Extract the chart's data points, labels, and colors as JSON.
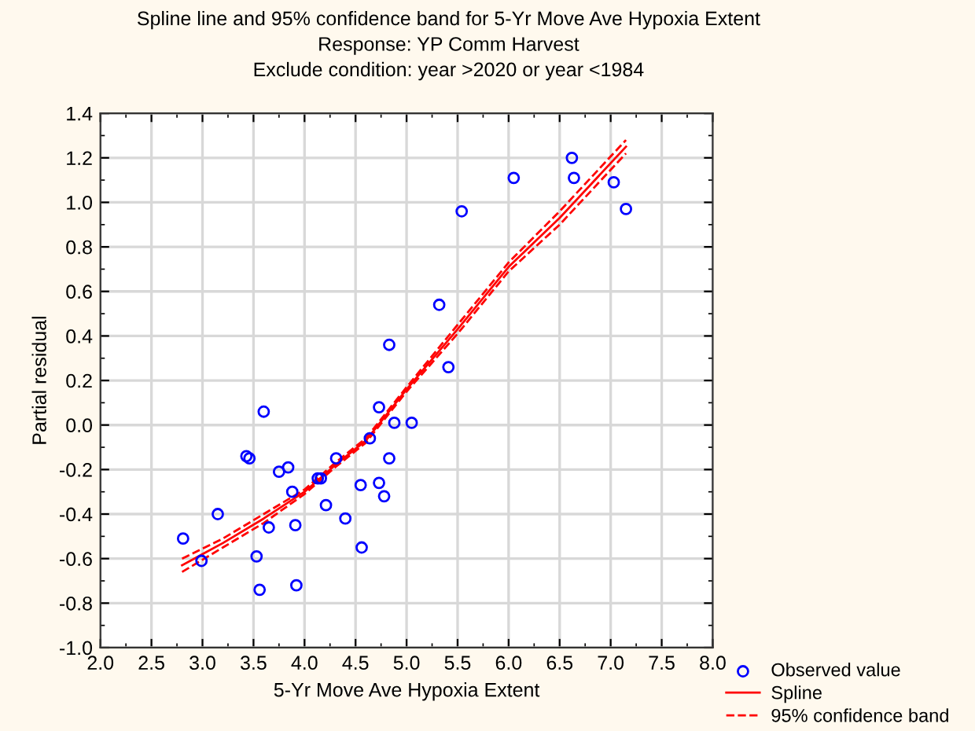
{
  "chart_data": {
    "type": "scatter",
    "title": "Spline line and 95% confidence band for 5-Yr Move Ave Hypoxia Extent",
    "subtitle": "Response: YP Comm Harvest\nExclude condition: year >2020 or year <1984",
    "xlabel": "5-Yr Move Ave Hypoxia Extent",
    "ylabel": "Partial residual",
    "xlim": [
      2.0,
      8.0
    ],
    "xticks": [
      {
        "value": 2,
        "label": "2.0"
      },
      2.5,
      {
        "value": 3,
        "label": "3.0"
      },
      3.5,
      {
        "value": 4,
        "label": "4.0"
      },
      4.5,
      {
        "value": 5,
        "label": "5.0"
      },
      5.5,
      {
        "value": 6,
        "label": "6.0"
      },
      6.5,
      {
        "value": 7,
        "label": "7.0"
      },
      7.5,
      {
        "value": 8,
        "label": "8.0"
      }
    ],
    "ylim": [
      -1.0,
      1.4
    ],
    "yticks": [
      {
        "value": -1,
        "label": "-1.0"
      },
      -0.8,
      -0.6,
      -0.4,
      -0.2,
      {
        "value": 0,
        "label": "0.0"
      },
      0.2,
      0.4,
      0.6,
      0.8,
      {
        "value": 1,
        "label": "1.0"
      },
      1.2,
      1.4
    ],
    "grid": true,
    "legend": "bottom right",
    "series": [
      {
        "name": "Observed value",
        "marker": "circle",
        "color": "#0000ff",
        "x": [
          2.81,
          2.99,
          3.15,
          3.43,
          3.46,
          3.53,
          3.56,
          3.6,
          3.65,
          3.75,
          3.84,
          3.88,
          3.91,
          3.92,
          4.13,
          4.16,
          4.21,
          4.31,
          4.4,
          4.55,
          4.56,
          4.64,
          4.73,
          4.73,
          4.78,
          4.83,
          4.83,
          4.88,
          5.05,
          5.32,
          5.41,
          5.54,
          6.05,
          6.62,
          6.64,
          7.03,
          7.15
        ],
        "values": [
          -0.51,
          -0.61,
          -0.4,
          -0.14,
          -0.15,
          -0.59,
          -0.74,
          0.06,
          -0.46,
          -0.21,
          -0.19,
          -0.3,
          -0.45,
          -0.72,
          -0.24,
          -0.24,
          -0.36,
          -0.15,
          -0.42,
          -0.27,
          -0.55,
          -0.06,
          0.08,
          -0.26,
          -0.32,
          -0.15,
          0.36,
          0.01,
          0.01,
          0.54,
          0.26,
          0.96,
          1.11,
          1.2,
          1.11,
          1.09,
          0.97
        ]
      },
      {
        "name": "Spline",
        "type": "line",
        "marker": "none",
        "line_style": "solid",
        "color": "#ff0000",
        "x": [
          2.8,
          3.2,
          3.6,
          4.0,
          4.3,
          4.6,
          5.0,
          5.5,
          6.0,
          6.5,
          7.15
        ],
        "values": [
          -0.63,
          -0.53,
          -0.42,
          -0.3,
          -0.18,
          -0.07,
          0.16,
          0.43,
          0.71,
          0.93,
          1.25
        ]
      },
      {
        "name": "95% confidence band",
        "type": "line",
        "marker": "none",
        "line_style": "dashed",
        "color": "#ff0000",
        "x": [
          2.8,
          3.2,
          3.6,
          4.0,
          4.3,
          4.6,
          5.0,
          5.5,
          6.0,
          6.5,
          7.15
        ],
        "values": [
          -0.6,
          -0.51,
          -0.4,
          -0.29,
          -0.17,
          -0.06,
          0.17,
          0.45,
          0.73,
          0.96,
          1.28
        ]
      },
      {
        "type": "line",
        "marker": "none",
        "line_style": "dashed",
        "color": "#ff0000",
        "x": [
          2.8,
          3.2,
          3.6,
          4.0,
          4.3,
          4.6,
          5.0,
          5.5,
          6.0,
          6.5,
          7.15
        ],
        "values": [
          -0.66,
          -0.55,
          -0.44,
          -0.31,
          -0.19,
          -0.08,
          0.15,
          0.41,
          0.69,
          0.9,
          1.22
        ]
      }
    ]
  }
}
